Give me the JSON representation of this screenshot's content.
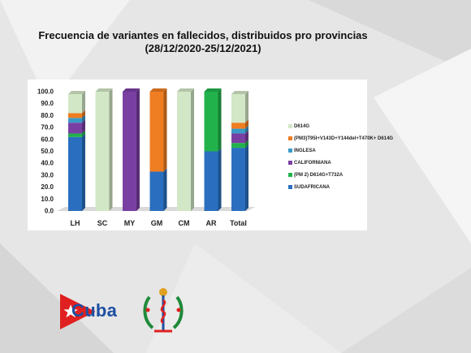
{
  "slide": {
    "title_line1": "Frecuencia de variantes en fallecidos, distribuidos pro provincias",
    "title_line2": "(28/12/2020-25/12/2021)"
  },
  "brand": {
    "text": "Cuba",
    "flag_colors": {
      "red": "#e02020",
      "white": "#ffffff"
    },
    "text_color": "#1d4fa3"
  },
  "chart_data": {
    "type": "bar",
    "stacked": true,
    "categories": [
      "LH",
      "SC",
      "MY",
      "GM",
      "CM",
      "AR",
      "Total"
    ],
    "ylim": [
      0,
      100
    ],
    "yticks": [
      "0.0",
      "10.0",
      "20.0",
      "30.0",
      "40.0",
      "50.0",
      "60.0",
      "70.0",
      "80.0",
      "90.0",
      "100.0"
    ],
    "grid": false,
    "legend_position": "right",
    "series": [
      {
        "name": "SUDAFRICANA",
        "color": "#2a6fbf",
        "values": [
          62,
          0,
          0,
          33,
          0,
          50,
          53
        ]
      },
      {
        "name": "(PM 2) D614G+T732A",
        "color": "#22b24c",
        "values": [
          3,
          0,
          0,
          0,
          0,
          50,
          4
        ]
      },
      {
        "name": "CALIFORNIANA",
        "color": "#7a3fa3",
        "values": [
          9,
          0,
          100,
          0,
          0,
          0,
          8
        ]
      },
      {
        "name": "INGLESA",
        "color": "#3a9ac8",
        "values": [
          4,
          0,
          0,
          0,
          0,
          0,
          4
        ]
      },
      {
        "name": "(PM3)T95I+V143D+Y144del+T470K+ D614G",
        "color": "#ef7d22",
        "values": [
          4,
          0,
          0,
          67,
          0,
          0,
          5
        ]
      },
      {
        "name": "D614G",
        "color": "#d2e7c6",
        "values": [
          16,
          100,
          0,
          0,
          100,
          0,
          24
        ]
      }
    ]
  }
}
